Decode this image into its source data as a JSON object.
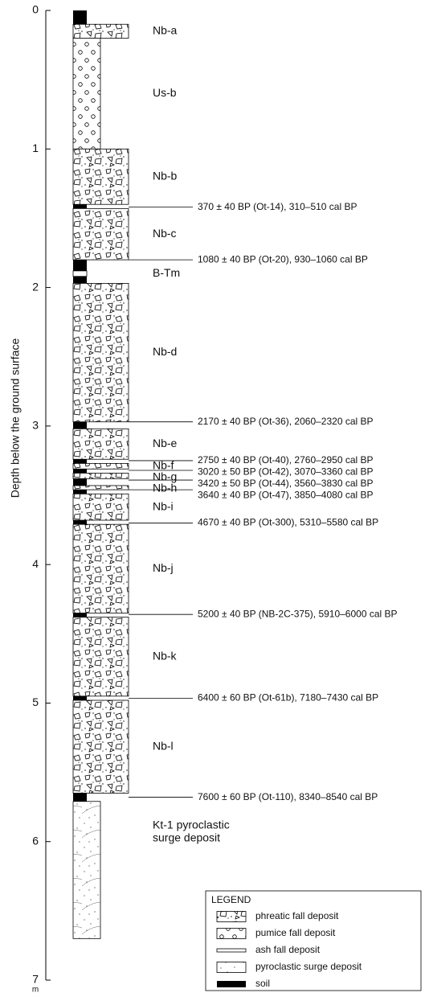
{
  "axis": {
    "title": "Depth below the ground surface",
    "unit": "m",
    "ticks": [
      0,
      1,
      2,
      3,
      4,
      5,
      6,
      7
    ],
    "range": [
      0,
      7
    ]
  },
  "layers": [
    {
      "type": "soil",
      "top": 0,
      "bottom": 0.1
    },
    {
      "label": "Nb-a",
      "type": "phreatic",
      "top": 0.1,
      "bottom": 0.2
    },
    {
      "label": "Us-b",
      "type": "pumice",
      "top": 0.2,
      "bottom": 1.0
    },
    {
      "label": "Nb-b",
      "type": "phreatic",
      "top": 1.0,
      "bottom": 1.4
    },
    {
      "type": "soil",
      "top": 1.4,
      "bottom": 1.43
    },
    {
      "label": "Nb-c",
      "type": "phreatic",
      "top": 1.43,
      "bottom": 1.8
    },
    {
      "type": "soil",
      "top": 1.8,
      "bottom": 1.88
    },
    {
      "label": "B-Tm",
      "type": "ash",
      "top": 1.88,
      "bottom": 1.92
    },
    {
      "type": "soil",
      "top": 1.92,
      "bottom": 1.97
    },
    {
      "label": "Nb-d",
      "type": "phreatic",
      "top": 1.97,
      "bottom": 2.97
    },
    {
      "type": "soil",
      "top": 2.97,
      "bottom": 3.02
    },
    {
      "label": "Nb-e",
      "type": "phreatic",
      "top": 3.02,
      "bottom": 3.24
    },
    {
      "type": "soil",
      "top": 3.24,
      "bottom": 3.27
    },
    {
      "label": "Nb-f",
      "type": "phreatic",
      "top": 3.27,
      "bottom": 3.31
    },
    {
      "type": "soil",
      "top": 3.31,
      "bottom": 3.34
    },
    {
      "label": "Nb-g",
      "type": "phreatic",
      "top": 3.34,
      "bottom": 3.38
    },
    {
      "type": "soil",
      "top": 3.38,
      "bottom": 3.43
    },
    {
      "label": "Nb-h",
      "type": "phreatic",
      "top": 3.43,
      "bottom": 3.46
    },
    {
      "type": "soil",
      "top": 3.46,
      "bottom": 3.49
    },
    {
      "label": "Nb-i",
      "type": "phreatic",
      "top": 3.49,
      "bottom": 3.68
    },
    {
      "type": "soil",
      "top": 3.68,
      "bottom": 3.71
    },
    {
      "label": "Nb-j",
      "type": "phreatic",
      "top": 3.71,
      "bottom": 4.35
    },
    {
      "type": "soil",
      "top": 4.35,
      "bottom": 4.38
    },
    {
      "label": "Nb-k",
      "type": "phreatic",
      "top": 4.38,
      "bottom": 4.95
    },
    {
      "type": "soil",
      "top": 4.95,
      "bottom": 4.98
    },
    {
      "label": "Nb-l",
      "type": "phreatic",
      "top": 4.98,
      "bottom": 5.65
    },
    {
      "type": "soil",
      "top": 5.65,
      "bottom": 5.71
    },
    {
      "label": [
        "Kt-1 pyroclastic",
        "surge deposit"
      ],
      "type": "surge",
      "top": 5.71,
      "bottom": 6.7
    }
  ],
  "dates": [
    {
      "depth": 1.42,
      "label": "370 ± 40 BP (Ot-14), 310–510 cal BP"
    },
    {
      "depth": 1.8,
      "label": "1080 ± 40 BP (Ot-20), 930–1060 cal BP"
    },
    {
      "depth": 2.97,
      "label": "2170 ± 40 BP (Ot-36), 2060–2320 cal BP"
    },
    {
      "depth": 3.25,
      "label": "2750 ± 40 BP (Ot-40), 2760–2950 cal BP"
    },
    {
      "depth": 3.32,
      "label": "3020 ± 50 BP (Ot-42), 3070–3360 cal BP"
    },
    {
      "depth": 3.39,
      "label": "3420 ± 50 BP (Ot-44), 3560–3830 cal BP"
    },
    {
      "depth": 3.46,
      "label": "3640 ± 40 BP (Ot-47), 3850–4080 cal BP"
    },
    {
      "depth": 3.7,
      "label": "4670 ± 40 BP (Ot-300), 5310–5580 cal BP"
    },
    {
      "depth": 4.36,
      "label": "5200 ± 40 BP (NB-2C-375), 5910–6000 cal BP"
    },
    {
      "depth": 4.965,
      "label": "6400 ± 60 BP (Ot-61b), 7180–7430 cal BP"
    },
    {
      "depth": 5.68,
      "label": "7600 ± 60 BP (Ot-110), 8340–8540 cal BP"
    }
  ],
  "legend": {
    "title": "LEGEND",
    "items": [
      {
        "type": "phreatic",
        "label": "phreatic fall deposit"
      },
      {
        "type": "pumice",
        "label": "pumice fall deposit"
      },
      {
        "type": "ash",
        "label": "ash fall deposit"
      },
      {
        "type": "surge",
        "label": "pyroclastic surge deposit"
      },
      {
        "type": "soil",
        "label": "soil"
      }
    ]
  }
}
